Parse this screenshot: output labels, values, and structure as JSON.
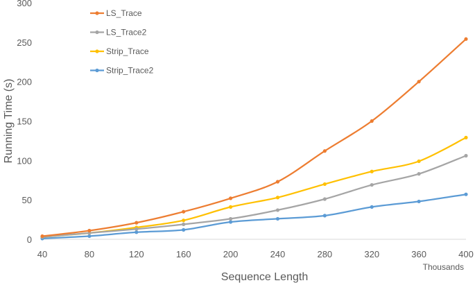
{
  "chart_data": {
    "type": "line",
    "xlabel": "Sequence Length",
    "ylabel": "Running Time (s)",
    "x_unit_label": "Thousands",
    "x": [
      40,
      80,
      120,
      160,
      200,
      240,
      280,
      320,
      360,
      400
    ],
    "xlim": [
      40,
      400
    ],
    "ylim": [
      0,
      300
    ],
    "yticks": [
      0,
      50,
      100,
      150,
      200,
      250,
      300
    ],
    "grid": false,
    "legend_position": "top-left",
    "series": [
      {
        "name": "LS_Trace",
        "color": "#ED7D31",
        "values": [
          4,
          11,
          21,
          35,
          52,
          73,
          112,
          150,
          200,
          254
        ]
      },
      {
        "name": "LS_Trace2",
        "color": "#A5A5A5",
        "values": [
          3,
          8,
          13,
          19,
          26,
          37,
          51,
          69,
          83,
          106
        ]
      },
      {
        "name": "Strip_Trace",
        "color": "#FFC000",
        "values": [
          3,
          8,
          15,
          24,
          41,
          53,
          70,
          86,
          99,
          129
        ]
      },
      {
        "name": "Strip_Trace2",
        "color": "#5B9BD5",
        "values": [
          1,
          4,
          9,
          12,
          22,
          26,
          30,
          41,
          48,
          57
        ]
      }
    ]
  }
}
